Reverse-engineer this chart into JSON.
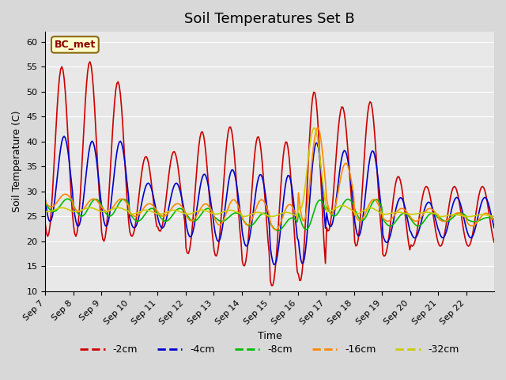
{
  "title": "Soil Temperatures Set B",
  "xlabel": "Time",
  "ylabel": "Soil Temperature (C)",
  "annotation": "BC_met",
  "ylim": [
    10,
    62
  ],
  "yticks": [
    10,
    15,
    20,
    25,
    30,
    35,
    40,
    45,
    50,
    55,
    60
  ],
  "xtick_labels": [
    "Sep 7",
    "Sep 8",
    "Sep 9",
    "Sep 10",
    "Sep 11",
    "Sep 12",
    "Sep 13",
    "Sep 14",
    "Sep 15",
    "Sep 16",
    "Sep 17",
    "Sep 18",
    "Sep 19",
    "Sep 20",
    "Sep 21",
    "Sep 22"
  ],
  "series_labels": [
    "-2cm",
    "-4cm",
    "-8cm",
    "-16cm",
    "-32cm"
  ],
  "series_colors": [
    "#cc0000",
    "#0000cc",
    "#00bb00",
    "#ff8800",
    "#cccc00"
  ],
  "background_color": "#e8e8e8",
  "plot_bg_color": "#e8e8e8",
  "grid_color": "#ffffff",
  "title_fontsize": 13,
  "label_fontsize": 9,
  "tick_fontsize": 8,
  "n_points_per_day": 24,
  "days": 16
}
